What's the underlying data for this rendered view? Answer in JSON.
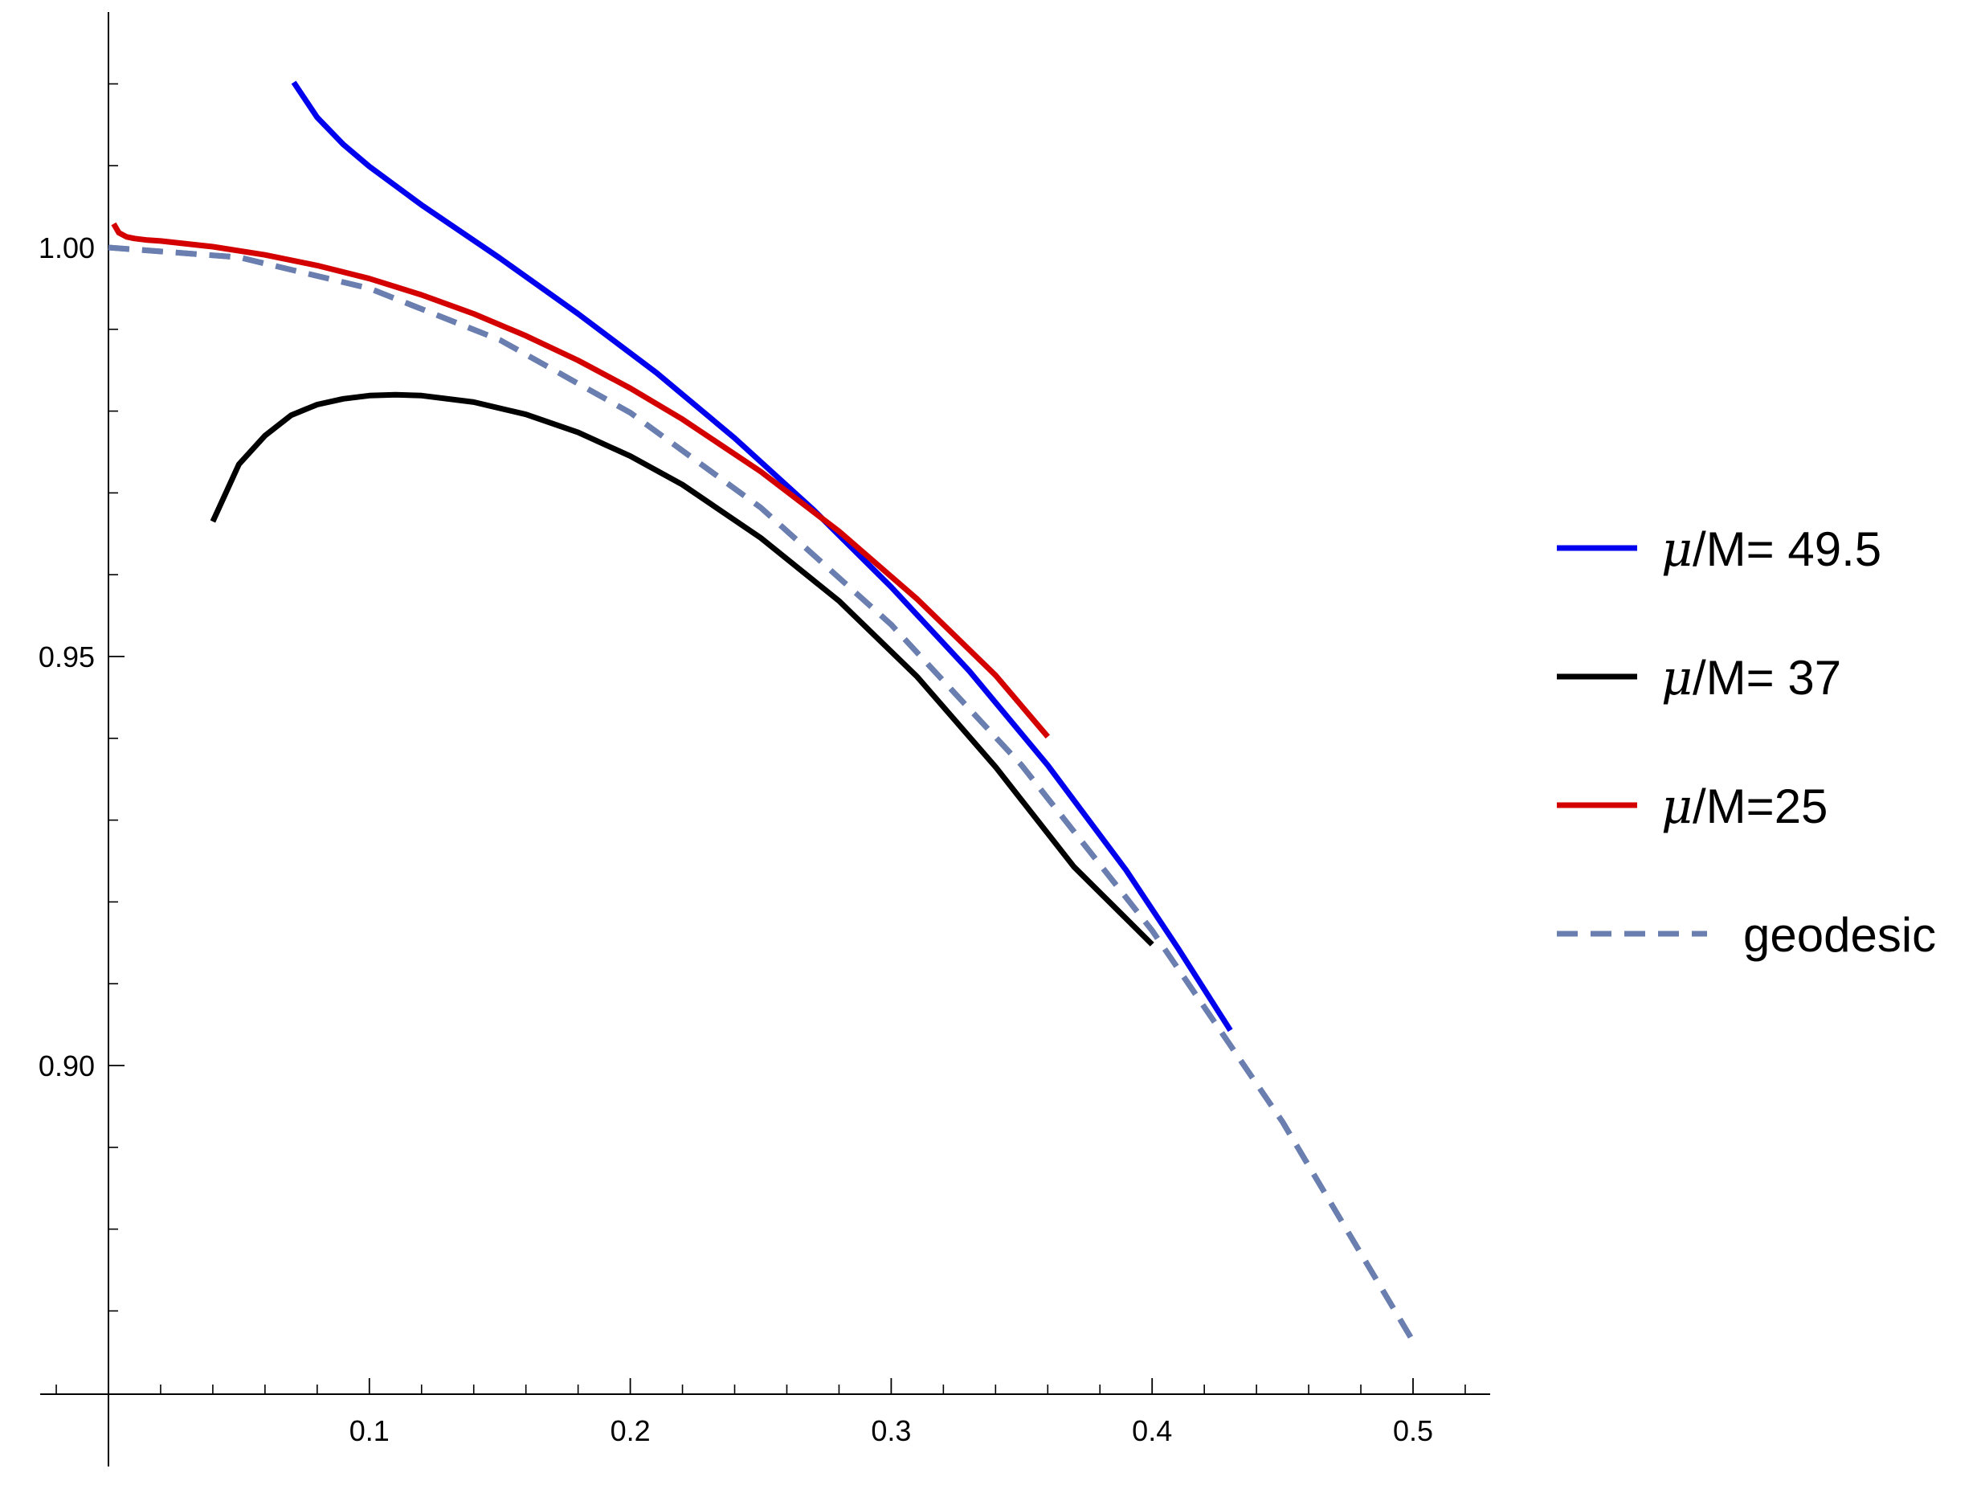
{
  "chart_data": {
    "type": "line",
    "title": "",
    "xlabel": "",
    "ylabel": "",
    "xlim": [
      -0.025,
      0.528
    ],
    "ylim": [
      0.86,
      1.028
    ],
    "x_ticks": [
      {
        "value": 0.1,
        "label": "0.1"
      },
      {
        "value": 0.2,
        "label": "0.2"
      },
      {
        "value": 0.3,
        "label": "0.3"
      },
      {
        "value": 0.4,
        "label": "0.4"
      },
      {
        "value": 0.5,
        "label": "0.5"
      }
    ],
    "x_minor_step": 0.02,
    "y_ticks": [
      {
        "value": 0.9,
        "label": "0.90"
      },
      {
        "value": 0.95,
        "label": "0.95"
      },
      {
        "value": 1.0,
        "label": "1.00"
      }
    ],
    "y_minor_step": 0.01,
    "y_minor_range": [
      0.87,
      1.02
    ],
    "grid": false,
    "legend_position": "right",
    "series": [
      {
        "name": "μ/M= 49.5",
        "name_prefix": "μ",
        "name_suffix": "/M= 49.5",
        "color": "#0000ee",
        "dash": "solid",
        "x": [
          0.071,
          0.08,
          0.09,
          0.1,
          0.12,
          0.15,
          0.18,
          0.21,
          0.24,
          0.27,
          0.3,
          0.33,
          0.36,
          0.39,
          0.41,
          0.43
        ],
        "y": [
          1.0202,
          1.0159,
          1.0126,
          1.0099,
          1.0052,
          0.9987,
          0.9919,
          0.9847,
          0.9767,
          0.968,
          0.9585,
          0.9482,
          0.9367,
          0.9239,
          0.9143,
          0.9043
        ]
      },
      {
        "name": "μ/M= 37",
        "name_prefix": "μ",
        "name_suffix": "/M= 37",
        "color": "#000000",
        "dash": "solid",
        "x": [
          0.04,
          0.05,
          0.06,
          0.07,
          0.08,
          0.09,
          0.1,
          0.11,
          0.12,
          0.14,
          0.16,
          0.18,
          0.2,
          0.22,
          0.25,
          0.28,
          0.31,
          0.34,
          0.37,
          0.4
        ],
        "y": [
          0.9665,
          0.9735,
          0.977,
          0.9795,
          0.9808,
          0.9815,
          0.9819,
          0.982,
          0.9819,
          0.9811,
          0.9796,
          0.9774,
          0.9745,
          0.971,
          0.9645,
          0.9568,
          0.9475,
          0.9365,
          0.9243,
          0.9148
        ]
      },
      {
        "name": "μ/M=25",
        "name_prefix": "μ",
        "name_suffix": "/M=25",
        "color": "#d40000",
        "dash": "solid",
        "x": [
          0.002,
          0.004,
          0.007,
          0.01,
          0.015,
          0.02,
          0.04,
          0.06,
          0.08,
          0.1,
          0.12,
          0.14,
          0.16,
          0.18,
          0.2,
          0.22,
          0.25,
          0.28,
          0.31,
          0.34,
          0.36
        ],
        "y": [
          1.0029,
          1.0018,
          1.0013,
          1.0011,
          1.0009,
          1.0008,
          1.0001,
          0.9991,
          0.9978,
          0.9962,
          0.9942,
          0.9919,
          0.9892,
          0.9862,
          0.9828,
          0.979,
          0.9726,
          0.9653,
          0.957,
          0.9477,
          0.9402
        ]
      },
      {
        "name": "geodesic",
        "color": "#6a7fb0",
        "dash": "dashed",
        "x": [
          0.0,
          0.05,
          0.1,
          0.15,
          0.2,
          0.25,
          0.3,
          0.35,
          0.4,
          0.45,
          0.5
        ],
        "y": [
          1.0,
          0.9988,
          0.995,
          0.9887,
          0.9798,
          0.9682,
          0.9539,
          0.9367,
          0.9165,
          0.8931,
          0.8663
        ]
      }
    ]
  }
}
